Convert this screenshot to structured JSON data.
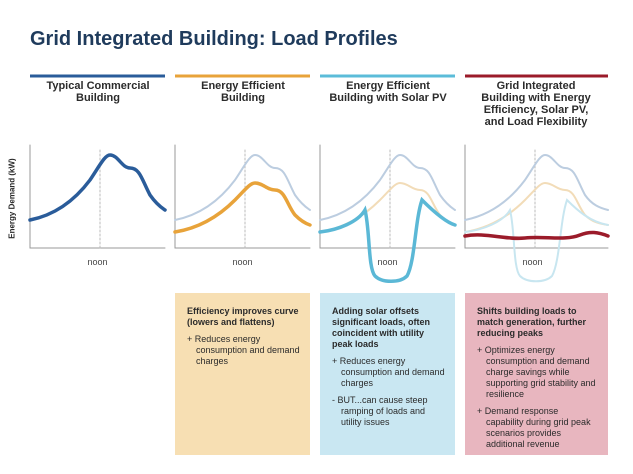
{
  "title": "Grid Integrated Building: Load Profiles",
  "y_axis_label": "Energy Demand (kW)",
  "columns": [
    {
      "heading": "Typical Commercial Building",
      "x_label": "noon"
    },
    {
      "heading": "Energy Efficient Building",
      "x_label": "noon",
      "box": {
        "title": "Efficiency improves curve (lowers and flattens)",
        "bullets": [
          "+ Reduces energy consumption and demand charges"
        ]
      }
    },
    {
      "heading": "Energy Efficient Building with Solar PV",
      "x_label": "noon",
      "box": {
        "title": "Adding solar offsets significant loads, often coincident with utility peak loads",
        "bullets": [
          "+ Reduces energy consumption and demand charges",
          "- BUT...can cause steep ramping of loads and utility issues"
        ]
      }
    },
    {
      "heading": "Grid Integrated Building with Energy Efficiency, Solar PV, and Load Flexibility",
      "x_label": "noon",
      "box": {
        "title": "Shifts building loads to match generation, further reducing peaks",
        "bullets": [
          "+ Optimizes energy consumption and demand charge savings while supporting grid stability and resilience",
          "+ Demand response capability during grid peak scenarios provides additional revenue"
        ]
      }
    }
  ]
}
